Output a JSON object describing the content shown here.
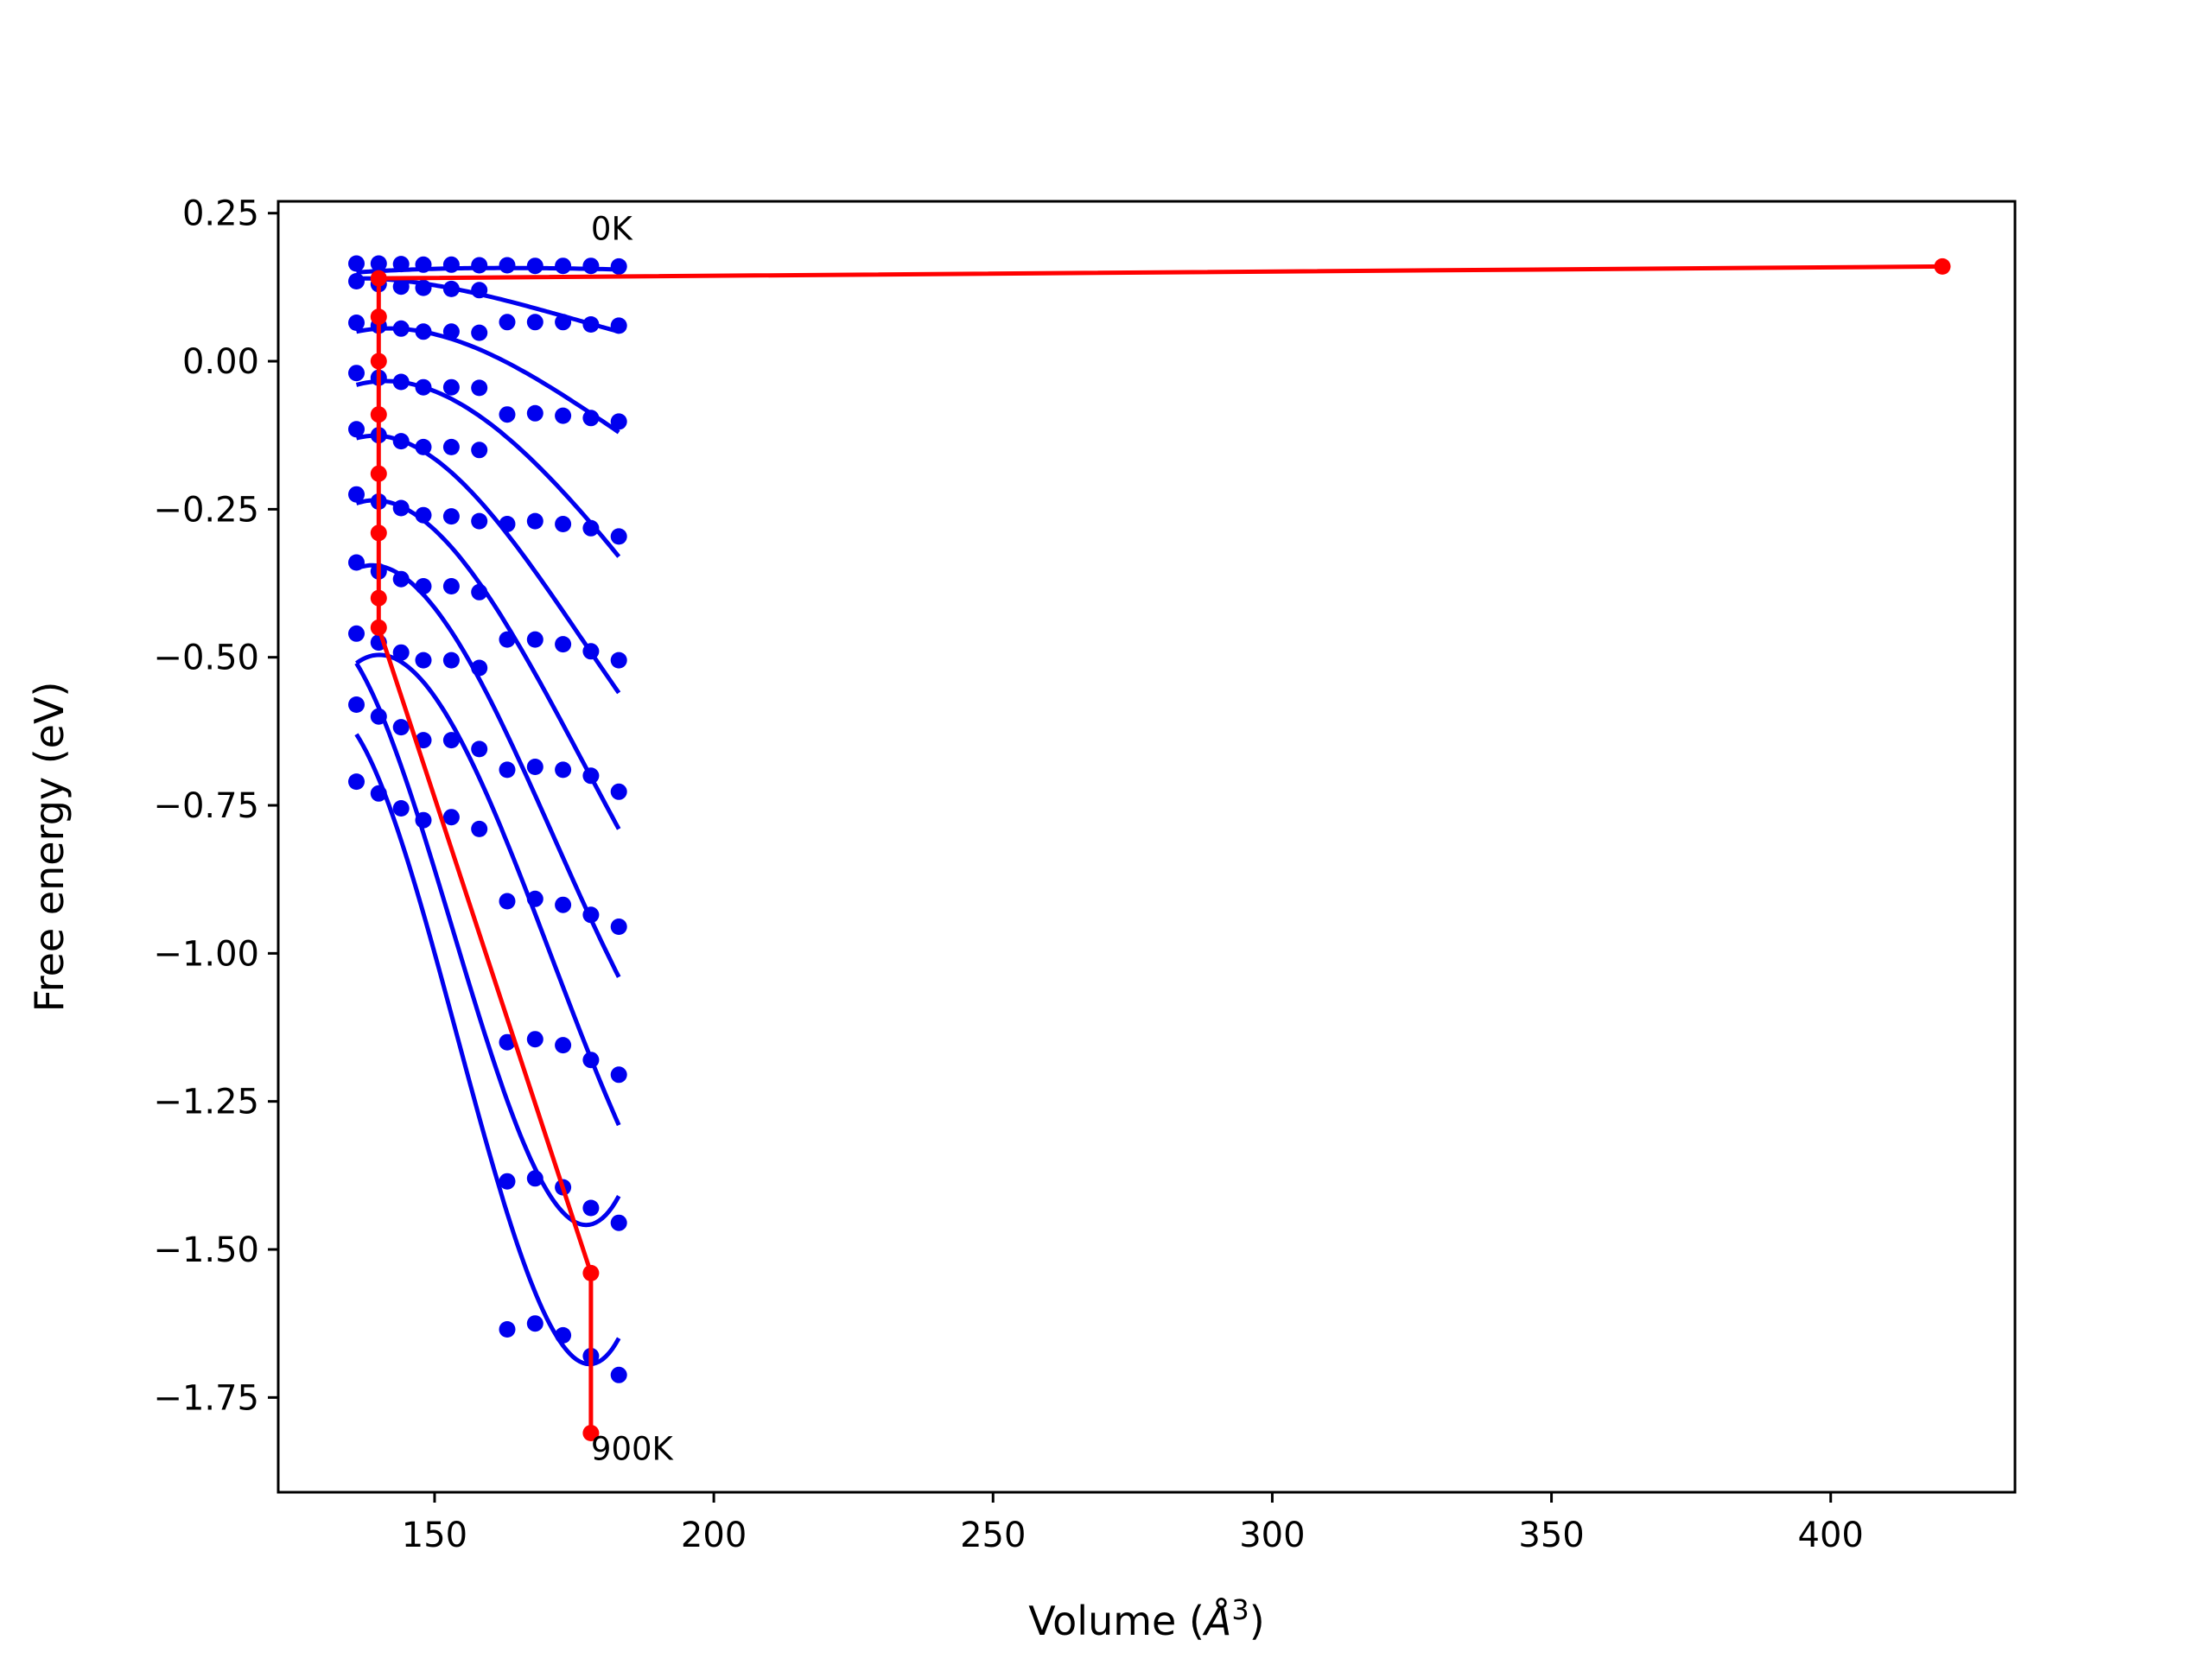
{
  "chart_data": {
    "type": "scatter",
    "xlabel": "Volume",
    "xlabel_unit_base": "Å",
    "xlabel_unit_exp": "3",
    "ylabel": "Free energy (eV)",
    "xlim": [
      122,
      433
    ],
    "ylim": [
      -1.91,
      0.27
    ],
    "x_ticks": [
      150,
      200,
      250,
      300,
      350,
      400
    ],
    "x_tick_labels": [
      "150",
      "200",
      "250",
      "300",
      "350",
      "400"
    ],
    "y_ticks": [
      0.25,
      0.0,
      -0.25,
      -0.5,
      -0.75,
      -1.0,
      -1.25,
      -1.5,
      -1.75
    ],
    "y_tick_labels": [
      "0.25",
      "0.00",
      "−0.25",
      "−0.50",
      "−0.75",
      "−1.00",
      "−1.25",
      "−1.50",
      "−1.75"
    ],
    "grid": false,
    "colors": {
      "points": "#0000ee",
      "fit": "#0000ee",
      "minima": "#ff0000"
    },
    "annotations": [
      {
        "text": "0K",
        "x": 178,
        "y": 0.205
      },
      {
        "text": "900K",
        "x": 178,
        "y": -1.855
      }
    ],
    "volumes": [
      136,
      140,
      144,
      148,
      153,
      158,
      163,
      168,
      173,
      178,
      183
    ],
    "fit_x_range": [
      136,
      183
    ],
    "series": [
      {
        "values": [
          0.165,
          0.165,
          0.164,
          0.163,
          0.163,
          0.162,
          0.162,
          0.161,
          0.161,
          0.161,
          0.16
        ],
        "fit": [
          0.15,
          0.16,
          0.158,
          0.155
        ]
      },
      {
        "values": [
          0.135,
          0.13,
          0.126,
          0.124,
          0.122,
          0.12,
          0.066,
          0.066,
          0.066,
          0.062,
          0.06
        ],
        "fit": [
          0.14,
          0.14,
          0.09,
          0.05
        ]
      },
      {
        "values": [
          0.065,
          0.06,
          0.055,
          0.05,
          0.05,
          0.048,
          -0.09,
          -0.088,
          -0.092,
          -0.096,
          -0.102
        ],
        "fit": [
          0.05,
          0.08,
          -0.02,
          -0.12
        ]
      },
      {
        "values": [
          -0.02,
          -0.028,
          -0.035,
          -0.044,
          -0.044,
          -0.045,
          -0.275,
          -0.27,
          -0.275,
          -0.282,
          -0.296
        ],
        "fit": [
          -0.04,
          0.0,
          -0.15,
          -0.33
        ]
      },
      {
        "values": [
          -0.115,
          -0.125,
          -0.135,
          -0.145,
          -0.145,
          -0.15,
          -0.47,
          -0.47,
          -0.478,
          -0.49,
          -0.505
        ],
        "fit": [
          -0.13,
          -0.09,
          -0.35,
          -0.56
        ]
      },
      {
        "values": [
          -0.225,
          -0.237,
          -0.248,
          -0.26,
          -0.262,
          -0.27,
          -0.69,
          -0.685,
          -0.69,
          -0.7,
          -0.727
        ],
        "fit": [
          -0.24,
          -0.19,
          -0.52,
          -0.79
        ]
      },
      {
        "values": [
          -0.34,
          -0.355,
          -0.368,
          -0.38,
          -0.38,
          -0.39,
          -0.912,
          -0.908,
          -0.918,
          -0.935,
          -0.955
        ],
        "fit": [
          -0.35,
          -0.29,
          -0.75,
          -1.04
        ]
      },
      {
        "values": [
          -0.46,
          -0.475,
          -0.492,
          -0.505,
          -0.505,
          -0.518,
          -1.15,
          -1.145,
          -1.155,
          -1.18,
          -1.205
        ],
        "fit": [
          -0.51,
          -0.4,
          -0.96,
          -1.29
        ]
      },
      {
        "values": [
          -0.58,
          -0.6,
          -0.618,
          -0.64,
          -0.64,
          -0.655,
          -1.385,
          -1.38,
          -1.395,
          -1.43,
          -1.455
        ],
        "fit": [
          -0.51,
          -0.75,
          -1.68,
          -1.41
        ]
      },
      {
        "values": [
          -0.71,
          -0.73,
          -0.755,
          -0.775,
          -0.77,
          -0.79,
          -1.635,
          -1.625,
          -1.645,
          -1.68,
          -1.712
        ],
        "fit": [
          -0.63,
          -0.86,
          -1.92,
          -1.65
        ]
      }
    ],
    "minima": {
      "name": "",
      "x": [
        420,
        140,
        140,
        140,
        140,
        140,
        140,
        140,
        140,
        178,
        178
      ],
      "y": [
        0.16,
        0.14,
        0.075,
        0.0,
        -0.09,
        -0.19,
        -0.29,
        -0.4,
        -0.45,
        -1.54,
        -1.81
      ]
    }
  }
}
